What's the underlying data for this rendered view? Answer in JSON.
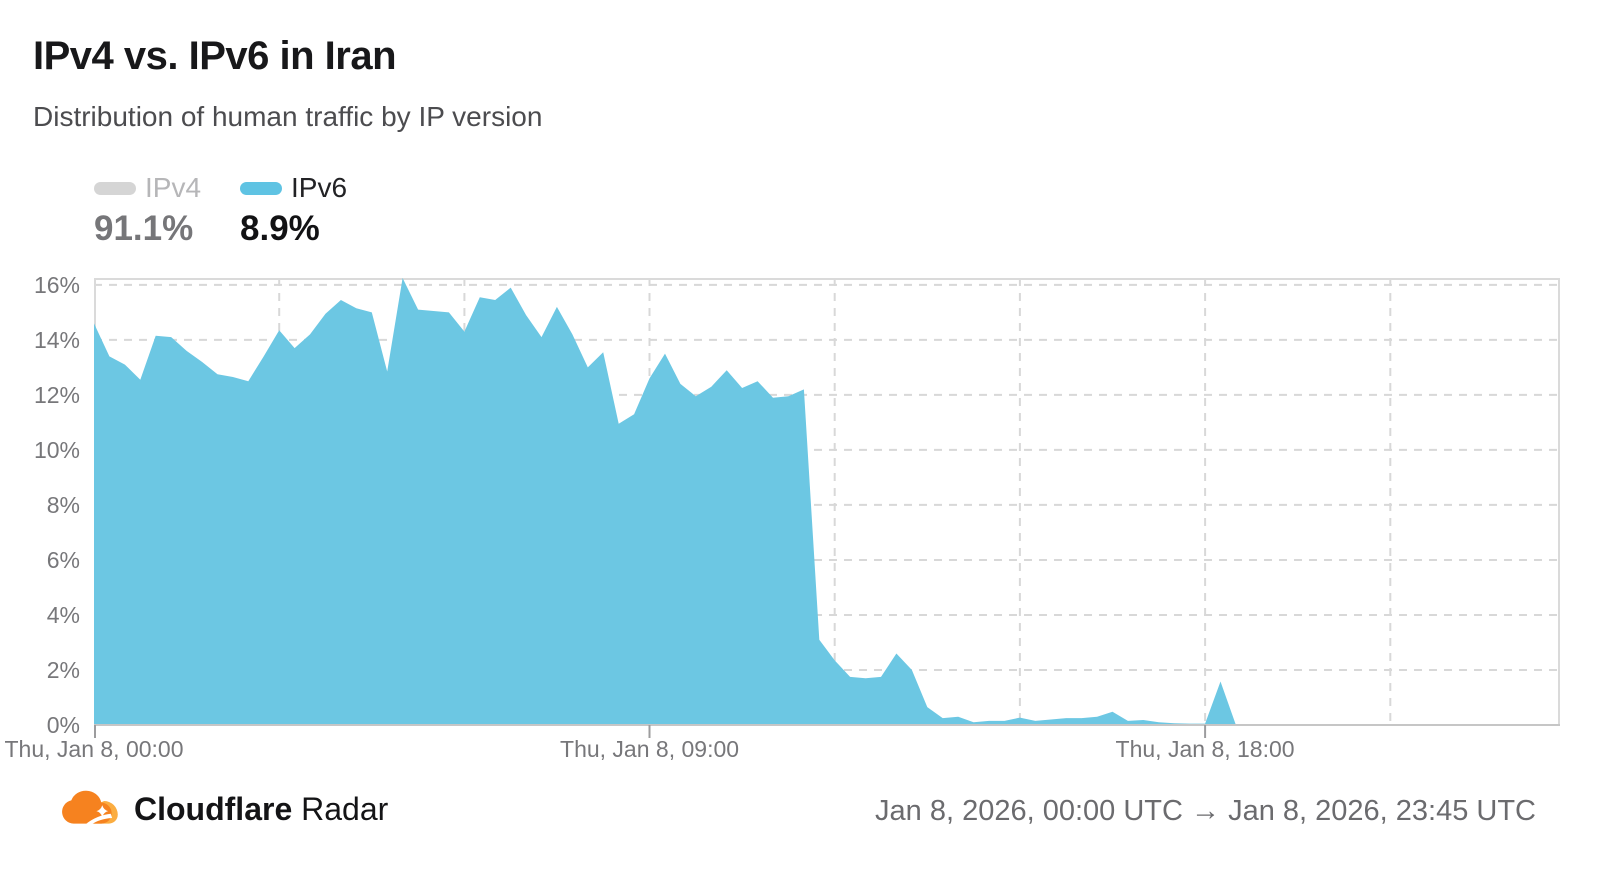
{
  "header": {
    "title": "IPv4 vs. IPv6 in Iran",
    "subtitle": "Distribution of human traffic by IP version"
  },
  "legend": {
    "items": [
      {
        "label": "IPv4",
        "value": "91.1%",
        "color": "#d5d5d5",
        "active": false
      },
      {
        "label": "IPv6",
        "value": "8.9%",
        "color": "#5fc3e3",
        "active": true
      }
    ]
  },
  "chart_data": {
    "type": "area",
    "title": "IPv4 vs. IPv6 in Iran",
    "xlabel": "",
    "ylabel": "",
    "unit": "%",
    "area_color": "#6cc7e3",
    "grid": "dashed",
    "legend_position": "top-left",
    "ylim": [
      0,
      16.25
    ],
    "xlim_hours": 23.75,
    "interval_minutes": 15,
    "x_start_label": "Thu, Jan 8, 00:00 UTC",
    "y_ticks": [
      "16%",
      "14%",
      "12%",
      "10%",
      "8%",
      "6%",
      "4%",
      "2%",
      "0%"
    ],
    "y_tick_values": [
      16,
      14,
      12,
      10,
      8,
      6,
      4,
      2,
      0
    ],
    "grid_hours": [
      3,
      6,
      9,
      12,
      15,
      18,
      21
    ],
    "x_ticks": [
      {
        "label": "Thu, Jan 8, 00:00",
        "hour": 0
      },
      {
        "label": "Thu, Jan 8, 09:00",
        "hour": 9
      },
      {
        "label": "Thu, Jan 8, 18:00",
        "hour": 18
      }
    ],
    "series": [
      {
        "name": "IPv6",
        "values": [
          14.6,
          13.4,
          13.1,
          12.55,
          14.15,
          14.1,
          13.6,
          13.2,
          12.75,
          12.65,
          12.5,
          13.4,
          14.35,
          13.7,
          14.2,
          14.95,
          15.45,
          15.15,
          15.0,
          12.85,
          16.25,
          15.1,
          15.05,
          15.0,
          14.3,
          15.55,
          15.45,
          15.9,
          14.9,
          14.1,
          15.2,
          14.2,
          13.0,
          13.55,
          10.95,
          11.3,
          12.6,
          13.5,
          12.4,
          11.95,
          12.3,
          12.9,
          12.25,
          12.5,
          11.9,
          11.95,
          12.2,
          3.1,
          2.35,
          1.75,
          1.7,
          1.75,
          2.6,
          2.0,
          0.65,
          0.25,
          0.3,
          0.1,
          0.15,
          0.15,
          0.27,
          0.15,
          0.2,
          0.25,
          0.25,
          0.3,
          0.48,
          0.15,
          0.18,
          0.1,
          0.06,
          0.05,
          0.05,
          1.58,
          0,
          0,
          0,
          0,
          0,
          0,
          0,
          0,
          0,
          0,
          0,
          0,
          0,
          0,
          0,
          0,
          0,
          0,
          0,
          0,
          0,
          0
        ]
      }
    ]
  },
  "footer": {
    "brand_bold": "Cloudflare",
    "brand_regular": "Radar",
    "date_range": "Jan 8, 2026, 00:00 UTC → Jan 8, 2026, 23:45 UTC"
  }
}
